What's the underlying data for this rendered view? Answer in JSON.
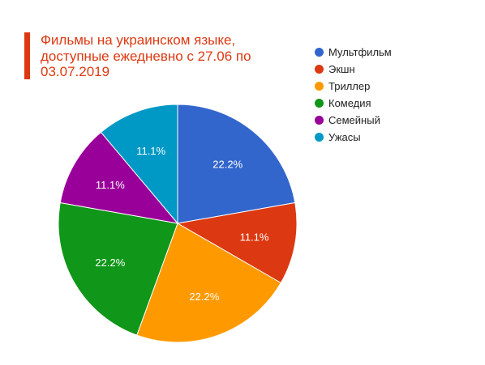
{
  "chart_data": {
    "type": "pie",
    "title": "Фильмы на украинском языке, доступные ежедневно с 27.06 по 03.07.2019",
    "legend_position": "right",
    "slices": [
      {
        "label": "Мультфильм",
        "value": 22.2,
        "display": "22.2%",
        "color": "#3366cc"
      },
      {
        "label": "Экшн",
        "value": 11.1,
        "display": "11.1%",
        "color": "#dc3912"
      },
      {
        "label": "Триллер",
        "value": 22.2,
        "display": "22.2%",
        "color": "#ff9900"
      },
      {
        "label": "Комедия",
        "value": 22.2,
        "display": "22.2%",
        "color": "#109618"
      },
      {
        "label": "Семейный",
        "value": 11.1,
        "display": "11.1%",
        "color": "#990099"
      },
      {
        "label": "Ужасы",
        "value": 11.1,
        "display": "11.1%",
        "color": "#0099c6"
      }
    ]
  }
}
